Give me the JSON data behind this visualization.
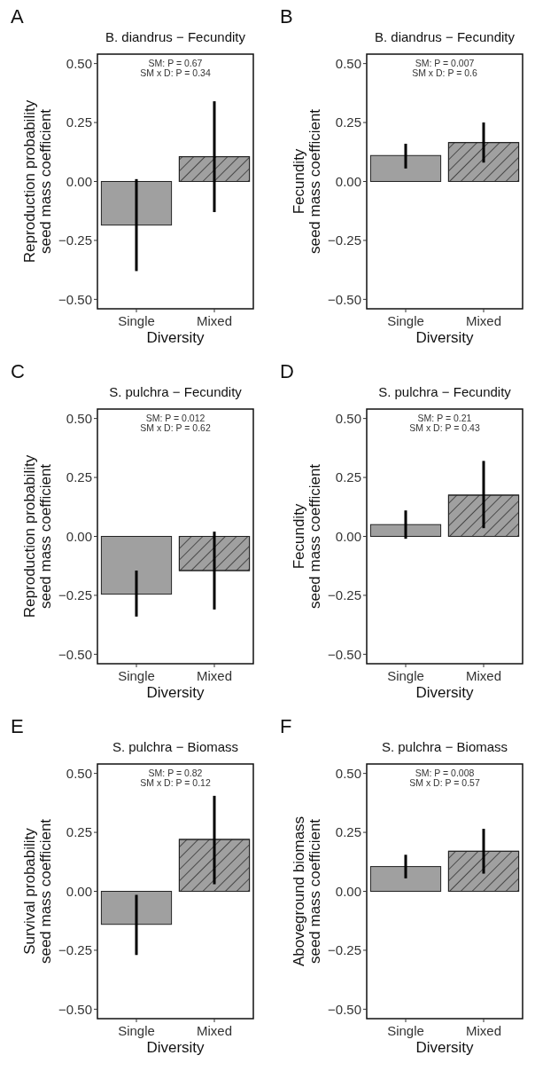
{
  "chart_data": [
    {
      "type": "bar",
      "title": "B. diandrus − Fecundity",
      "xlabel": "Diversity",
      "ylabel": "Reproduction probability\nseed mass coefficient",
      "categories": [
        "Single",
        "Mixed"
      ],
      "values": [
        -0.185,
        0.105
      ],
      "errors": [
        [
          -0.38,
          0.01
        ],
        [
          -0.13,
          0.34
        ]
      ],
      "colors": [
        "#a0a0a0",
        "#a0a0a0"
      ],
      "ylim": [
        -0.54,
        0.54
      ],
      "yticks": [
        {
          "value": -0.5,
          "label": "−0.50"
        },
        {
          "value": -0.25,
          "label": "−0.25"
        },
        {
          "value": 0,
          "label": "0.00"
        },
        {
          "value": 0.25,
          "label": "0.25"
        },
        {
          "value": 0.5,
          "label": "0.50"
        }
      ],
      "annotations": [
        "A",
        "SM: P = 0.67\nSM x D: P = 0.34"
      ]
    },
    {
      "type": "bar",
      "title": "B. diandrus − Fecundity",
      "xlabel": "Diversity",
      "ylabel": "Fecundity\nseed mass coefficient",
      "categories": [
        "Single",
        "Mixed"
      ],
      "values": [
        0.11,
        0.165
      ],
      "errors": [
        [
          0.055,
          0.16
        ],
        [
          0.08,
          0.25
        ]
      ],
      "colors": [
        "#a0a0a0",
        "#a0a0a0"
      ],
      "ylim": [
        -0.54,
        0.54
      ],
      "yticks": [
        {
          "value": -0.5,
          "label": "−0.50"
        },
        {
          "value": -0.25,
          "label": "−0.25"
        },
        {
          "value": 0,
          "label": "0.00"
        },
        {
          "value": 0.25,
          "label": "0.25"
        },
        {
          "value": 0.5,
          "label": "0.50"
        }
      ],
      "annotations": [
        "B",
        "SM: P = 0.007\nSM x D: P = 0.6"
      ]
    },
    {
      "type": "bar",
      "title": "S. pulchra − Fecundity",
      "xlabel": "Diversity",
      "ylabel": "Reproduction probability\nseed mass coefficient",
      "categories": [
        "Single",
        "Mixed"
      ],
      "values": [
        -0.245,
        -0.145
      ],
      "errors": [
        [
          -0.34,
          -0.145
        ],
        [
          -0.31,
          0.02
        ]
      ],
      "colors": [
        "#a0a0a0",
        "#a0a0a0"
      ],
      "ylim": [
        -0.54,
        0.54
      ],
      "yticks": [
        {
          "value": -0.5,
          "label": "−0.50"
        },
        {
          "value": -0.25,
          "label": "−0.25"
        },
        {
          "value": 0,
          "label": "0.00"
        },
        {
          "value": 0.25,
          "label": "0.25"
        },
        {
          "value": 0.5,
          "label": "0.50"
        }
      ],
      "annotations": [
        "C",
        "SM: P = 0.012\nSM x D: P = 0.62"
      ]
    },
    {
      "type": "bar",
      "title": "S. pulchra − Fecundity",
      "xlabel": "Diversity",
      "ylabel": "Fecundity\nseed mass coefficient",
      "categories": [
        "Single",
        "Mixed"
      ],
      "values": [
        0.05,
        0.175
      ],
      "errors": [
        [
          -0.01,
          0.11
        ],
        [
          0.035,
          0.32
        ]
      ],
      "colors": [
        "#a0a0a0",
        "#a0a0a0"
      ],
      "ylim": [
        -0.54,
        0.54
      ],
      "yticks": [
        {
          "value": -0.5,
          "label": "−0.50"
        },
        {
          "value": -0.25,
          "label": "−0.25"
        },
        {
          "value": 0,
          "label": "0.00"
        },
        {
          "value": 0.25,
          "label": "0.25"
        },
        {
          "value": 0.5,
          "label": "0.50"
        }
      ],
      "annotations": [
        "D",
        "SM: P = 0.21\nSM x D: P = 0.43"
      ]
    },
    {
      "type": "bar",
      "title": "S. pulchra − Biomass",
      "xlabel": "Diversity",
      "ylabel": "Survival probability\nseed mass coefficient",
      "categories": [
        "Single",
        "Mixed"
      ],
      "values": [
        -0.14,
        0.22
      ],
      "errors": [
        [
          -0.27,
          -0.015
        ],
        [
          0.03,
          0.405
        ]
      ],
      "colors": [
        "#a0a0a0",
        "#a0a0a0"
      ],
      "ylim": [
        -0.54,
        0.54
      ],
      "yticks": [
        {
          "value": -0.5,
          "label": "−0.50"
        },
        {
          "value": -0.25,
          "label": "−0.25"
        },
        {
          "value": 0,
          "label": "0.00"
        },
        {
          "value": 0.25,
          "label": "0.25"
        },
        {
          "value": 0.5,
          "label": "0.50"
        }
      ],
      "annotations": [
        "E",
        "SM: P = 0.82\nSM x D: P = 0.12"
      ]
    },
    {
      "type": "bar",
      "title": "S. pulchra − Biomass",
      "xlabel": "Diversity",
      "ylabel": "Aboveground biomass\nseed mass coefficient",
      "categories": [
        "Single",
        "Mixed"
      ],
      "values": [
        0.105,
        0.17
      ],
      "errors": [
        [
          0.055,
          0.155
        ],
        [
          0.075,
          0.265
        ]
      ],
      "colors": [
        "#a0a0a0",
        "#a0a0a0"
      ],
      "ylim": [
        -0.54,
        0.54
      ],
      "yticks": [
        {
          "value": -0.5,
          "label": "−0.50"
        },
        {
          "value": -0.25,
          "label": "−0.25"
        },
        {
          "value": 0,
          "label": "0.00"
        },
        {
          "value": 0.25,
          "label": "0.25"
        },
        {
          "value": 0.5,
          "label": "0.50"
        }
      ],
      "annotations": [
        "F",
        "SM: P = 0.008\nSM x D: P = 0.57"
      ]
    }
  ]
}
